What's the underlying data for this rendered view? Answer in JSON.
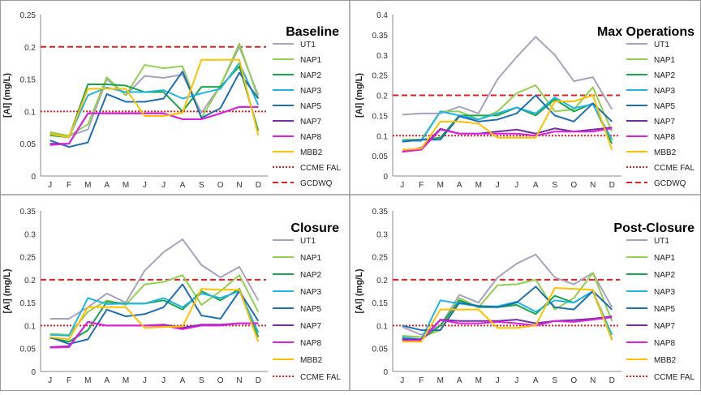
{
  "months": [
    "J",
    "F",
    "M",
    "A",
    "M",
    "J",
    "J",
    "A",
    "S",
    "O",
    "N",
    "D"
  ],
  "ylabel": "[Al]  (mg/L)",
  "series_styles": [
    {
      "name": "UT1",
      "color": "#a9a2bf",
      "dash": ""
    },
    {
      "name": "NAP1",
      "color": "#92d050",
      "dash": ""
    },
    {
      "name": "NAP2",
      "color": "#1aa64a",
      "dash": ""
    },
    {
      "name": "NAP3",
      "color": "#21b5e5",
      "dash": ""
    },
    {
      "name": "NAP5",
      "color": "#1f6fb5",
      "dash": ""
    },
    {
      "name": "NAP7",
      "color": "#7030a0",
      "dash": ""
    },
    {
      "name": "NAP8",
      "color": "#e020e0",
      "dash": ""
    },
    {
      "name": "MBB2",
      "color": "#ffc000",
      "dash": ""
    },
    {
      "name": "CCME FAL",
      "color": "#e02020",
      "dash": "2,2"
    },
    {
      "name": "GCDWQ",
      "color": "#e02020",
      "dash": "7,4"
    }
  ],
  "chart_data": [
    {
      "type": "line",
      "title": "Baseline",
      "ylim": [
        0,
        0.25
      ],
      "yticks": [
        "0",
        "0.05",
        "0.1",
        "0.15",
        "0.2",
        "0.25"
      ],
      "series": [
        {
          "name": "UT1",
          "values": [
            0.067,
            0.062,
            0.072,
            0.15,
            0.125,
            0.155,
            0.152,
            0.157,
            0.098,
            0.14,
            0.2,
            0.125
          ]
        },
        {
          "name": "NAP1",
          "values": [
            0.068,
            0.062,
            0.08,
            0.153,
            0.125,
            0.172,
            0.167,
            0.17,
            0.09,
            0.14,
            0.205,
            0.12
          ]
        },
        {
          "name": "NAP2",
          "values": [
            0.063,
            0.06,
            0.142,
            0.142,
            0.14,
            0.13,
            0.13,
            0.1,
            0.138,
            0.138,
            0.17,
            0.07
          ]
        },
        {
          "name": "NAP3",
          "values": [
            0.065,
            0.06,
            0.125,
            0.137,
            0.13,
            0.13,
            0.133,
            0.12,
            0.128,
            0.135,
            0.175,
            0.11
          ]
        },
        {
          "name": "NAP5",
          "values": [
            0.055,
            0.045,
            0.052,
            0.127,
            0.115,
            0.115,
            0.12,
            0.162,
            0.09,
            0.105,
            0.16,
            0.12
          ]
        },
        {
          "name": "NAP7",
          "values": [
            0.05,
            0.05,
            0.097,
            0.097,
            0.097,
            0.097,
            0.097,
            0.088,
            0.088,
            0.097,
            0.107,
            0.107
          ]
        },
        {
          "name": "NAP8",
          "values": [
            0.048,
            0.05,
            0.097,
            0.097,
            0.097,
            0.097,
            0.097,
            0.088,
            0.088,
            0.097,
            0.107,
            0.107
          ]
        },
        {
          "name": "MBB2",
          "values": [
            0.065,
            0.06,
            0.135,
            0.135,
            0.135,
            0.093,
            0.093,
            0.098,
            0.18,
            0.18,
            0.18,
            0.063
          ]
        }
      ]
    },
    {
      "type": "line",
      "title": "Max Operations",
      "ylim": [
        0,
        0.4
      ],
      "yticks": [
        "0",
        "0.05",
        "0.1",
        "0.15",
        "0.2",
        "0.25",
        "0.3",
        "0.35",
        "0.4"
      ],
      "series": [
        {
          "name": "UT1",
          "values": [
            0.152,
            0.155,
            0.155,
            0.172,
            0.155,
            0.24,
            0.295,
            0.345,
            0.3,
            0.235,
            0.245,
            0.165
          ]
        },
        {
          "name": "NAP1",
          "values": [
            0.09,
            0.09,
            0.16,
            0.16,
            0.14,
            0.16,
            0.205,
            0.225,
            0.16,
            0.165,
            0.22,
            0.11
          ]
        },
        {
          "name": "NAP2",
          "values": [
            0.088,
            0.09,
            0.095,
            0.15,
            0.15,
            0.15,
            0.17,
            0.15,
            0.19,
            0.16,
            0.18,
            0.08
          ]
        },
        {
          "name": "NAP3",
          "values": [
            0.088,
            0.087,
            0.16,
            0.15,
            0.14,
            0.155,
            0.17,
            0.155,
            0.195,
            0.168,
            0.178,
            0.09
          ]
        },
        {
          "name": "NAP5",
          "values": [
            0.085,
            0.09,
            0.09,
            0.148,
            0.135,
            0.14,
            0.155,
            0.2,
            0.15,
            0.135,
            0.18,
            0.135
          ]
        },
        {
          "name": "NAP7",
          "values": [
            0.06,
            0.07,
            0.117,
            0.105,
            0.105,
            0.11,
            0.115,
            0.105,
            0.118,
            0.11,
            0.115,
            0.12
          ]
        },
        {
          "name": "NAP8",
          "values": [
            0.06,
            0.065,
            0.115,
            0.105,
            0.105,
            0.105,
            0.105,
            0.1,
            0.11,
            0.11,
            0.11,
            0.118
          ]
        },
        {
          "name": "MBB2",
          "values": [
            0.065,
            0.068,
            0.135,
            0.135,
            0.13,
            0.095,
            0.095,
            0.095,
            0.185,
            0.185,
            0.2,
            0.065
          ]
        }
      ]
    },
    {
      "type": "line",
      "title": "Closure",
      "ylim": [
        0,
        0.35
      ],
      "yticks": [
        "0",
        "0.05",
        "0.1",
        "0.15",
        "0.2",
        "0.25",
        "0.3",
        "0.35"
      ],
      "series": [
        {
          "name": "UT1",
          "values": [
            0.115,
            0.115,
            0.14,
            0.17,
            0.15,
            0.22,
            0.26,
            0.288,
            0.232,
            0.205,
            0.228,
            0.155
          ]
        },
        {
          "name": "NAP1",
          "values": [
            0.082,
            0.08,
            0.13,
            0.155,
            0.145,
            0.19,
            0.195,
            0.21,
            0.145,
            0.175,
            0.21,
            0.13
          ]
        },
        {
          "name": "NAP2",
          "values": [
            0.073,
            0.065,
            0.09,
            0.152,
            0.148,
            0.148,
            0.155,
            0.135,
            0.175,
            0.155,
            0.18,
            0.075
          ]
        },
        {
          "name": "NAP3",
          "values": [
            0.08,
            0.078,
            0.16,
            0.147,
            0.148,
            0.148,
            0.16,
            0.14,
            0.17,
            0.16,
            0.175,
            0.085
          ]
        },
        {
          "name": "NAP5",
          "values": [
            0.075,
            0.06,
            0.07,
            0.135,
            0.12,
            0.125,
            0.14,
            0.19,
            0.122,
            0.115,
            0.175,
            0.11
          ]
        },
        {
          "name": "NAP7",
          "values": [
            0.053,
            0.055,
            0.108,
            0.1,
            0.1,
            0.1,
            0.102,
            0.095,
            0.102,
            0.102,
            0.105,
            0.105
          ]
        },
        {
          "name": "NAP8",
          "values": [
            0.052,
            0.053,
            0.108,
            0.1,
            0.1,
            0.1,
            0.1,
            0.092,
            0.1,
            0.1,
            0.105,
            0.105
          ]
        },
        {
          "name": "MBB2",
          "values": [
            0.075,
            0.07,
            0.14,
            0.14,
            0.14,
            0.095,
            0.097,
            0.098,
            0.18,
            0.178,
            0.178,
            0.065
          ]
        }
      ]
    },
    {
      "type": "line",
      "title": "Post-Closure",
      "ylim": [
        0,
        0.35
      ],
      "yticks": [
        "0",
        "0.05",
        "0.1",
        "0.15",
        "0.2",
        "0.25",
        "0.3",
        "0.35"
      ],
      "series": [
        {
          "name": "UT1",
          "values": [
            0.097,
            0.08,
            0.1,
            0.167,
            0.15,
            0.205,
            0.235,
            0.255,
            0.205,
            0.19,
            0.215,
            0.14
          ]
        },
        {
          "name": "NAP1",
          "values": [
            0.078,
            0.075,
            0.09,
            0.16,
            0.14,
            0.188,
            0.19,
            0.2,
            0.135,
            0.16,
            0.215,
            0.11
          ]
        },
        {
          "name": "NAP2",
          "values": [
            0.072,
            0.07,
            0.1,
            0.155,
            0.14,
            0.14,
            0.145,
            0.125,
            0.165,
            0.15,
            0.175,
            0.07
          ]
        },
        {
          "name": "NAP3",
          "values": [
            0.075,
            0.07,
            0.155,
            0.148,
            0.142,
            0.142,
            0.152,
            0.13,
            0.155,
            0.15,
            0.175,
            0.08
          ]
        },
        {
          "name": "NAP5",
          "values": [
            0.1,
            0.09,
            0.09,
            0.15,
            0.143,
            0.14,
            0.15,
            0.185,
            0.14,
            0.135,
            0.175,
            0.135
          ]
        },
        {
          "name": "NAP7",
          "values": [
            0.07,
            0.07,
            0.113,
            0.11,
            0.11,
            0.11,
            0.113,
            0.105,
            0.11,
            0.112,
            0.115,
            0.12
          ]
        },
        {
          "name": "NAP8",
          "values": [
            0.067,
            0.068,
            0.112,
            0.105,
            0.105,
            0.108,
            0.105,
            0.1,
            0.11,
            0.108,
            0.113,
            0.118
          ]
        },
        {
          "name": "MBB2",
          "values": [
            0.065,
            0.065,
            0.135,
            0.135,
            0.135,
            0.095,
            0.095,
            0.1,
            0.182,
            0.18,
            0.178,
            0.068
          ]
        }
      ]
    }
  ],
  "reference_lines": [
    {
      "name": "CCME FAL",
      "value": 0.1
    },
    {
      "name": "GCDWQ",
      "value": 0.2
    }
  ]
}
